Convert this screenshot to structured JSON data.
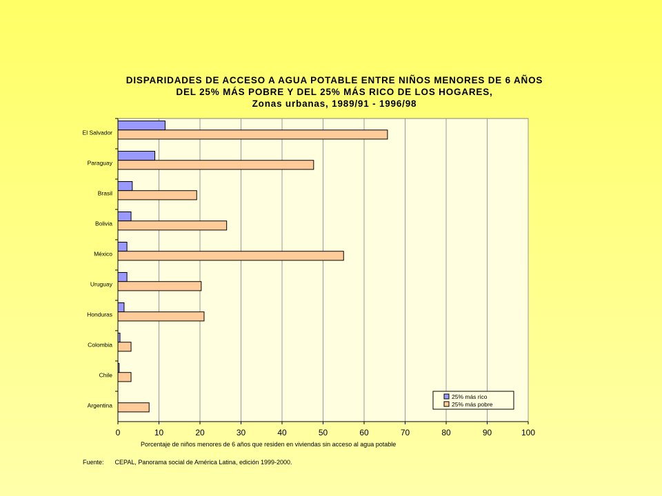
{
  "chart_data": {
    "type": "bar",
    "orientation": "horizontal",
    "title_lines": [
      "DISPARIDADES DE ACCESO A AGUA POTABLE ENTRE NIÑOS MENORES DE 6 AÑOS",
      "DEL 25% MÁS POBRE Y DEL 25% MÁS RICO DE LOS HOGARES,",
      "Zonas urbanas, 1989/91 - 1996/98"
    ],
    "categories": [
      "El Salvador",
      "Paraguay",
      "Brasil",
      "Bolivia",
      "México",
      "Uruguay",
      "Honduras",
      "Colombia",
      "Chile",
      "Argentina"
    ],
    "series": [
      {
        "name": "25% más rico",
        "color": "#9999ff",
        "values": [
          11.5,
          9.0,
          3.5,
          3.2,
          2.2,
          2.2,
          1.5,
          0.5,
          0.3,
          0
        ]
      },
      {
        "name": "25% más pobre",
        "color": "#ffcc99",
        "values": [
          65.7,
          47.7,
          19.2,
          26.5,
          55.0,
          20.3,
          21.0,
          3.2,
          3.2,
          7.6
        ]
      }
    ],
    "xlabel": "Porcentaje de niños menores de 6 años que residen en viviendas sin acceso al agua potable",
    "xlim": [
      0,
      100
    ],
    "xticks": [
      0,
      10,
      20,
      30,
      40,
      50,
      60,
      70,
      80,
      90,
      100
    ],
    "grid": true,
    "legend_position": "bottom-right",
    "plot_background": "#ffffe0"
  },
  "source": {
    "label": "Fuente:",
    "text": "CEPAL, Panorama social de América Latina, edición 1999-2000."
  }
}
